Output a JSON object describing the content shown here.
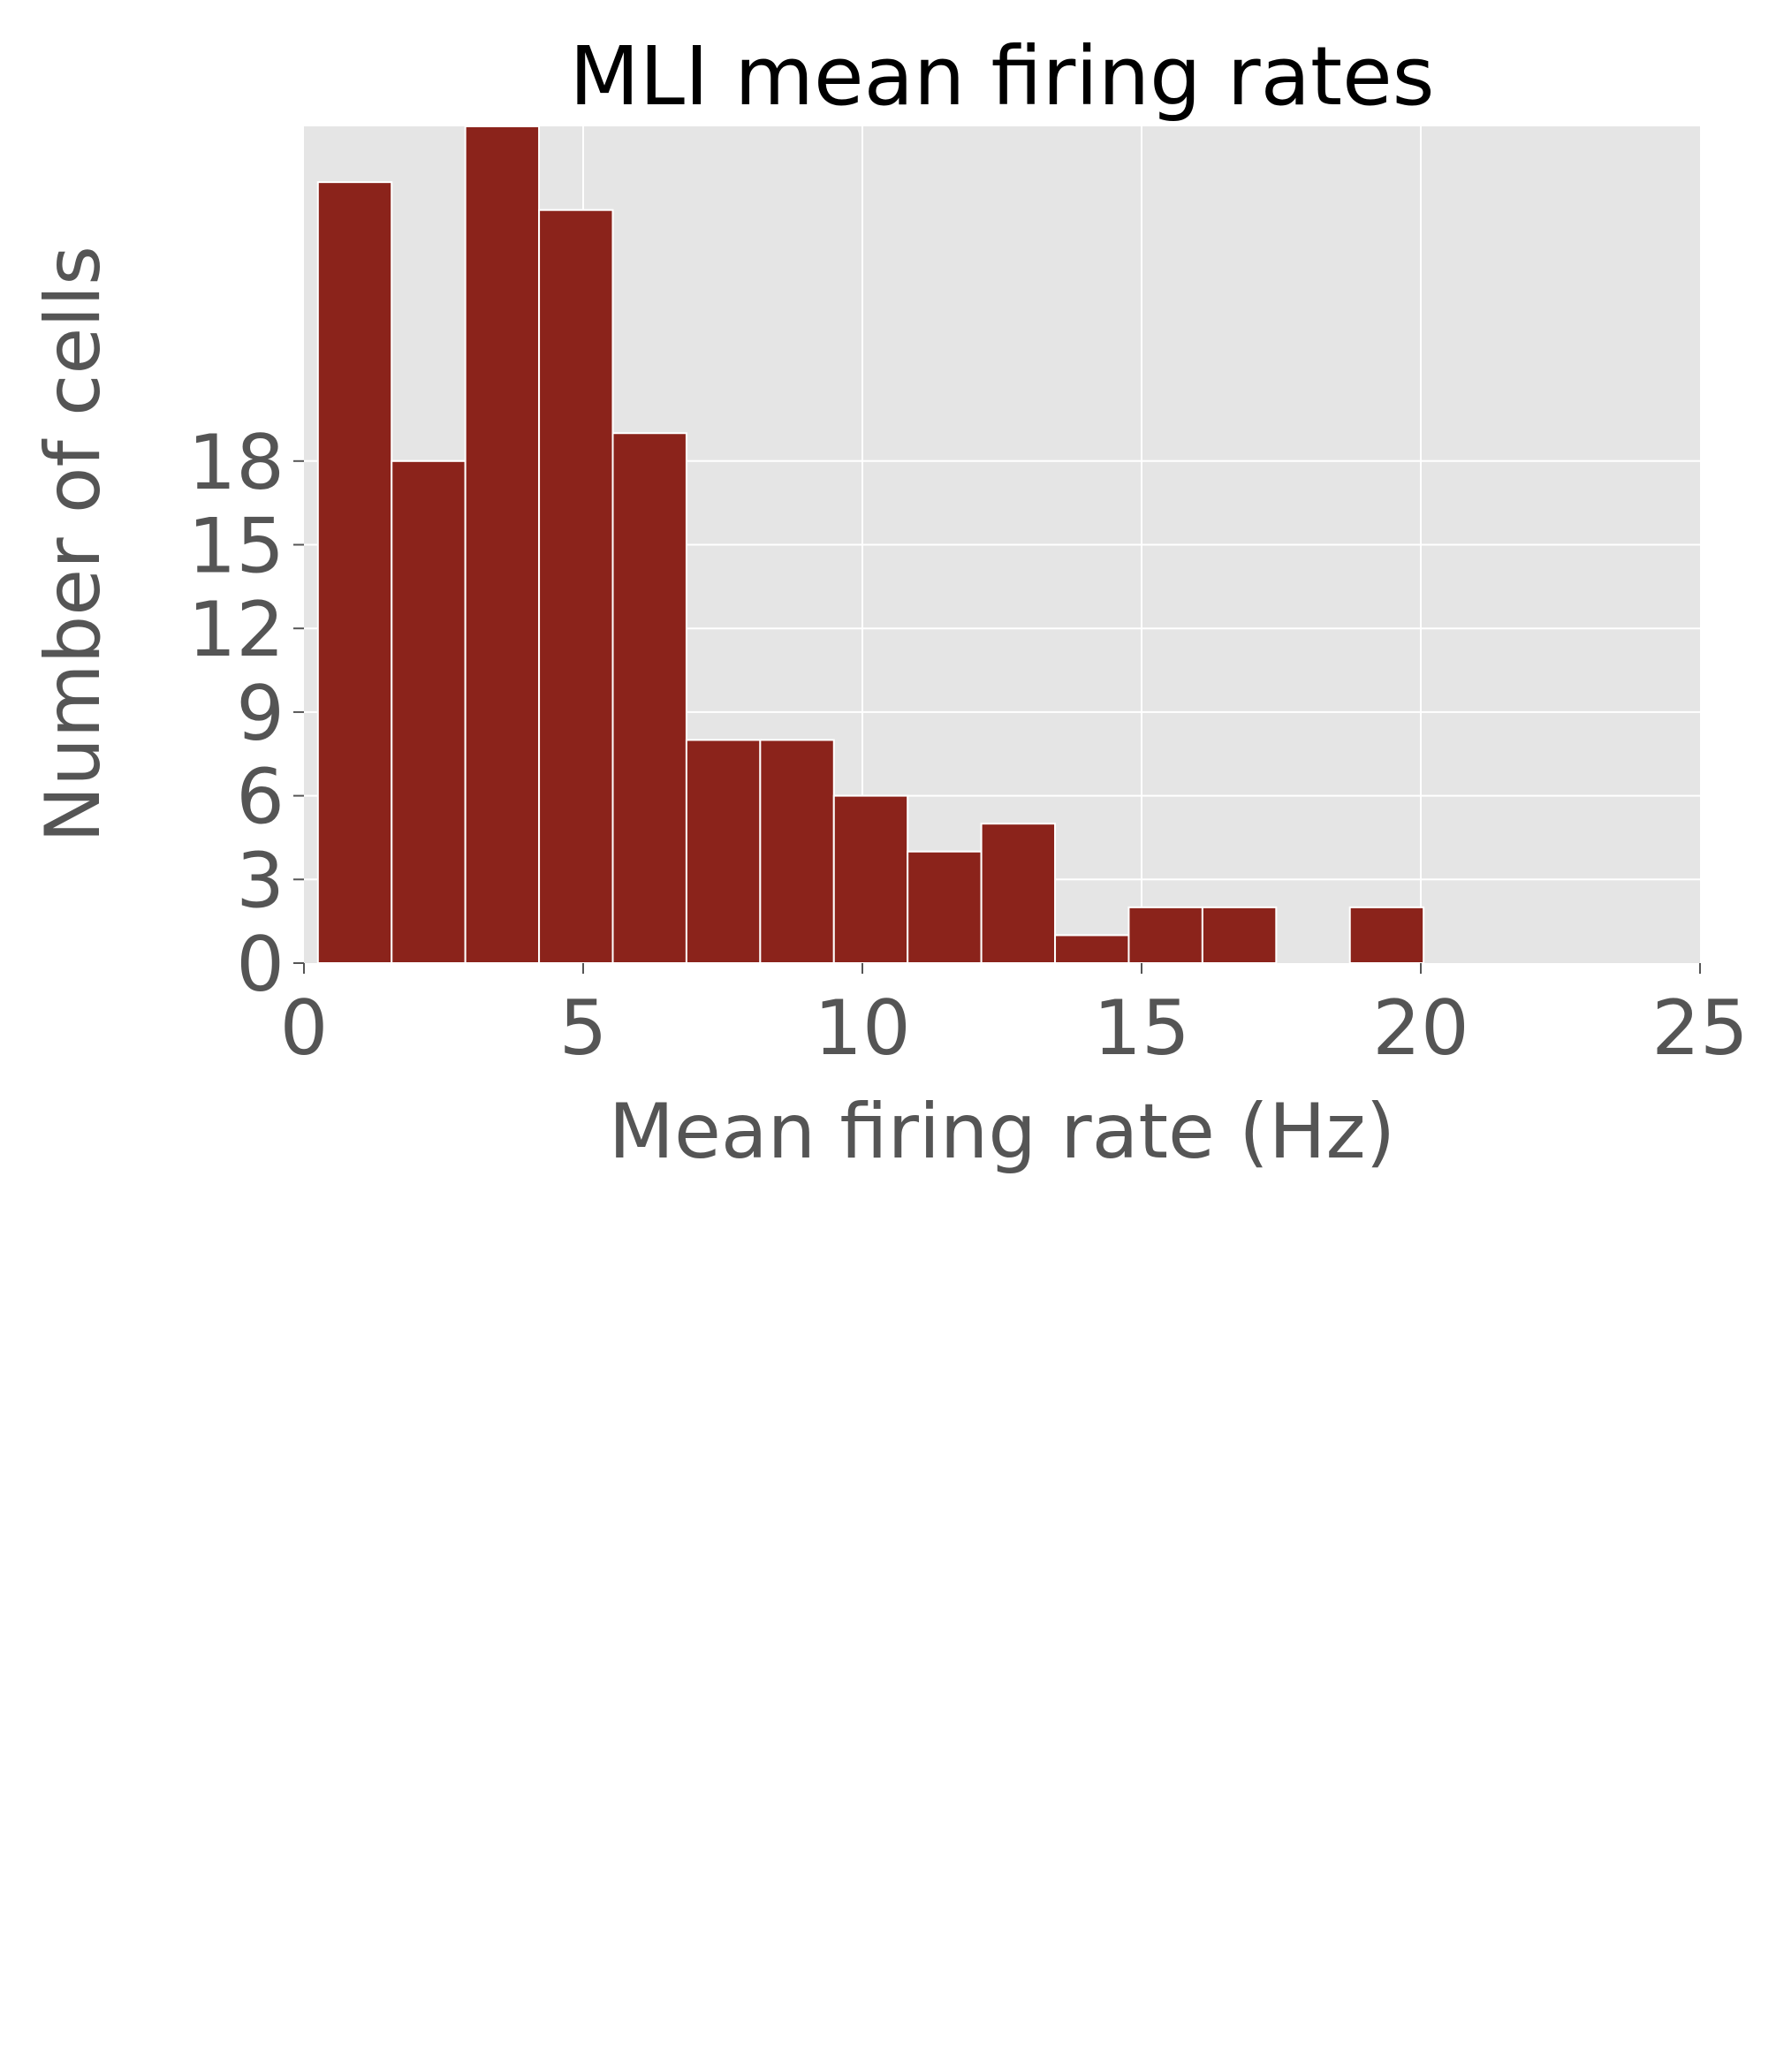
{
  "chart_data": {
    "type": "bar",
    "title": "MLI mean firing rates",
    "xlabel": "Mean firing rate (Hz)",
    "ylabel": "Number of cells",
    "xlim": [
      0,
      25
    ],
    "ylim": [
      0,
      30
    ],
    "x_ticks": [
      "0",
      "5",
      "10",
      "15",
      "20",
      "25"
    ],
    "y_ticks": [
      "0",
      "3",
      "6",
      "9",
      "12",
      "15",
      "18"
    ],
    "grid": true,
    "background_color": "#e5e5e5",
    "bar_color": "#8b231b",
    "bins": [
      {
        "x0": 0.25,
        "x1": 1.57,
        "value": 28
      },
      {
        "x0": 1.57,
        "x1": 2.89,
        "value": 18
      },
      {
        "x0": 2.89,
        "x1": 4.21,
        "value": 30
      },
      {
        "x0": 4.21,
        "x1": 5.53,
        "value": 27
      },
      {
        "x0": 5.53,
        "x1": 6.85,
        "value": 19
      },
      {
        "x0": 6.85,
        "x1": 8.17,
        "value": 8
      },
      {
        "x0": 8.17,
        "x1": 9.49,
        "value": 8
      },
      {
        "x0": 9.49,
        "x1": 10.81,
        "value": 6
      },
      {
        "x0": 10.81,
        "x1": 12.13,
        "value": 4
      },
      {
        "x0": 12.13,
        "x1": 13.45,
        "value": 5
      },
      {
        "x0": 13.45,
        "x1": 14.77,
        "value": 1
      },
      {
        "x0": 14.77,
        "x1": 16.09,
        "value": 2
      },
      {
        "x0": 16.09,
        "x1": 17.41,
        "value": 2
      },
      {
        "x0": 17.41,
        "x1": 18.73,
        "value": 0
      },
      {
        "x0": 18.73,
        "x1": 20.05,
        "value": 2
      }
    ]
  }
}
